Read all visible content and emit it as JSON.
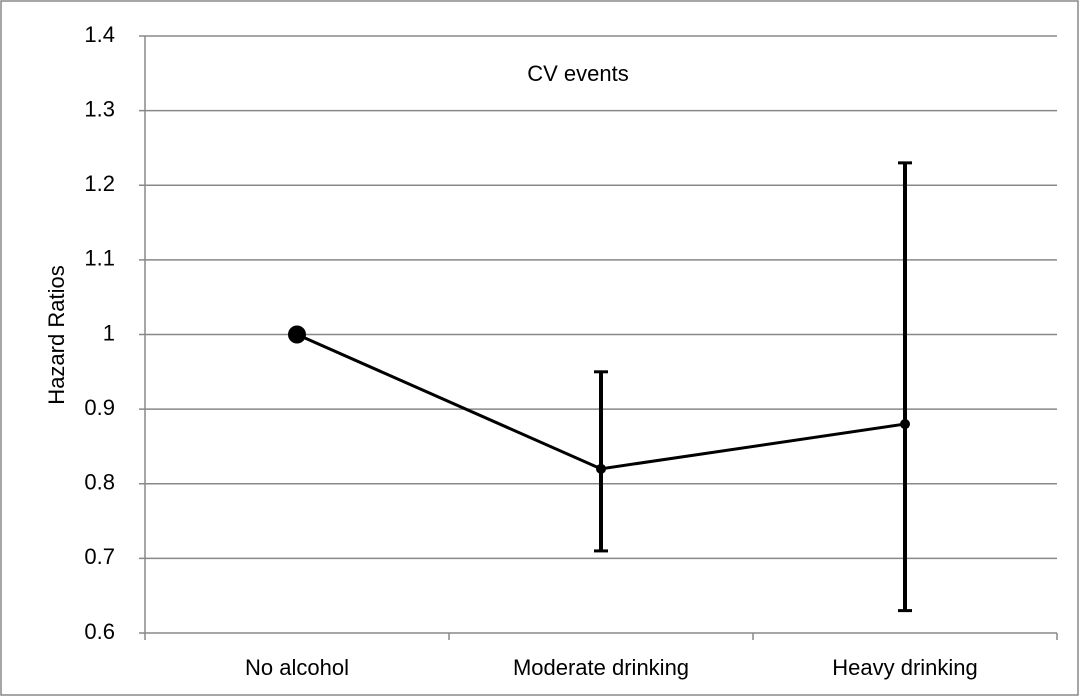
{
  "chart_data": {
    "type": "line",
    "title": "CV events",
    "y_label": "Hazard Ratios",
    "categories": [
      "No alcohol",
      "Moderate drinking",
      "Heavy drinking"
    ],
    "values": [
      1,
      0.82,
      0.88
    ],
    "ci_lower": [
      null,
      0.71,
      0.63
    ],
    "ci_upper": [
      null,
      0.95,
      1.23
    ],
    "color": "#000000",
    "ylim": [
      0.6,
      1.4
    ],
    "yticks": [
      0.6,
      0.7,
      0.8,
      0.9,
      1,
      1.1,
      1.2,
      1.3,
      1.4
    ],
    "grid": true
  }
}
